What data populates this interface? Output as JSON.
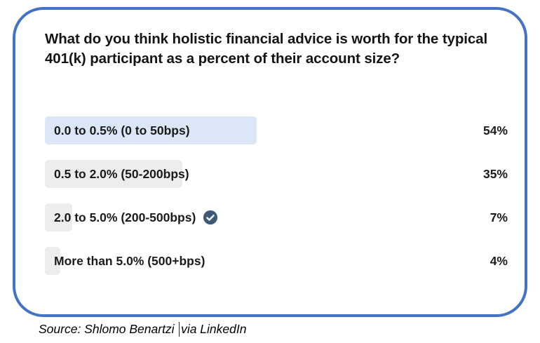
{
  "question": "What do you think holistic financial advice is worth for the typical 401(k) participant as a percent of their account size?",
  "poll": {
    "options": [
      {
        "label": "0.0 to 0.5% (0 to 50bps)",
        "percent": 54,
        "percent_label": "54%",
        "voted": false,
        "bar_color": "#dbe7f7"
      },
      {
        "label": "0.5 to 2.0% (50-200bps)",
        "percent": 35,
        "percent_label": "35%",
        "voted": false,
        "bar_color": "#ededed"
      },
      {
        "label": "2.0 to 5.0% (200-500bps)",
        "percent": 7,
        "percent_label": "7%",
        "voted": true,
        "bar_color": "#ededed"
      },
      {
        "label": "More than 5.0% (500+bps)",
        "percent": 4,
        "percent_label": "4%",
        "voted": false,
        "bar_color": "#ededed"
      }
    ]
  },
  "caption": {
    "text_before_cursor": "Source: Shlomo Benartzi",
    "text_after_cursor": "via LinkedIn"
  },
  "colors": {
    "card_border": "#4472c4",
    "bar_highlight": "#dbe7f7",
    "bar_gray": "#ededed",
    "vote_badge": "#3c5a78",
    "text": "#1b1b1b"
  },
  "chart_data": {
    "type": "bar",
    "orientation": "horizontal",
    "title": "What do you think holistic financial advice is worth for the typical 401(k) participant as a percent of their account size?",
    "categories": [
      "0.0 to 0.5% (0 to 50bps)",
      "0.5 to 2.0% (50-200bps)",
      "2.0 to 5.0% (200-500bps)",
      "More than 5.0% (500+bps)"
    ],
    "values": [
      54,
      35,
      7,
      4
    ],
    "value_labels": [
      "54%",
      "35%",
      "7%",
      "4%"
    ],
    "xlim": [
      0,
      100
    ],
    "xlabel": "",
    "ylabel": "",
    "legend": "none",
    "annotations": [
      "user vote checkmark on category '2.0 to 5.0% (200-500bps)'"
    ],
    "source": "Source: Shlomo Benartzi via LinkedIn"
  }
}
